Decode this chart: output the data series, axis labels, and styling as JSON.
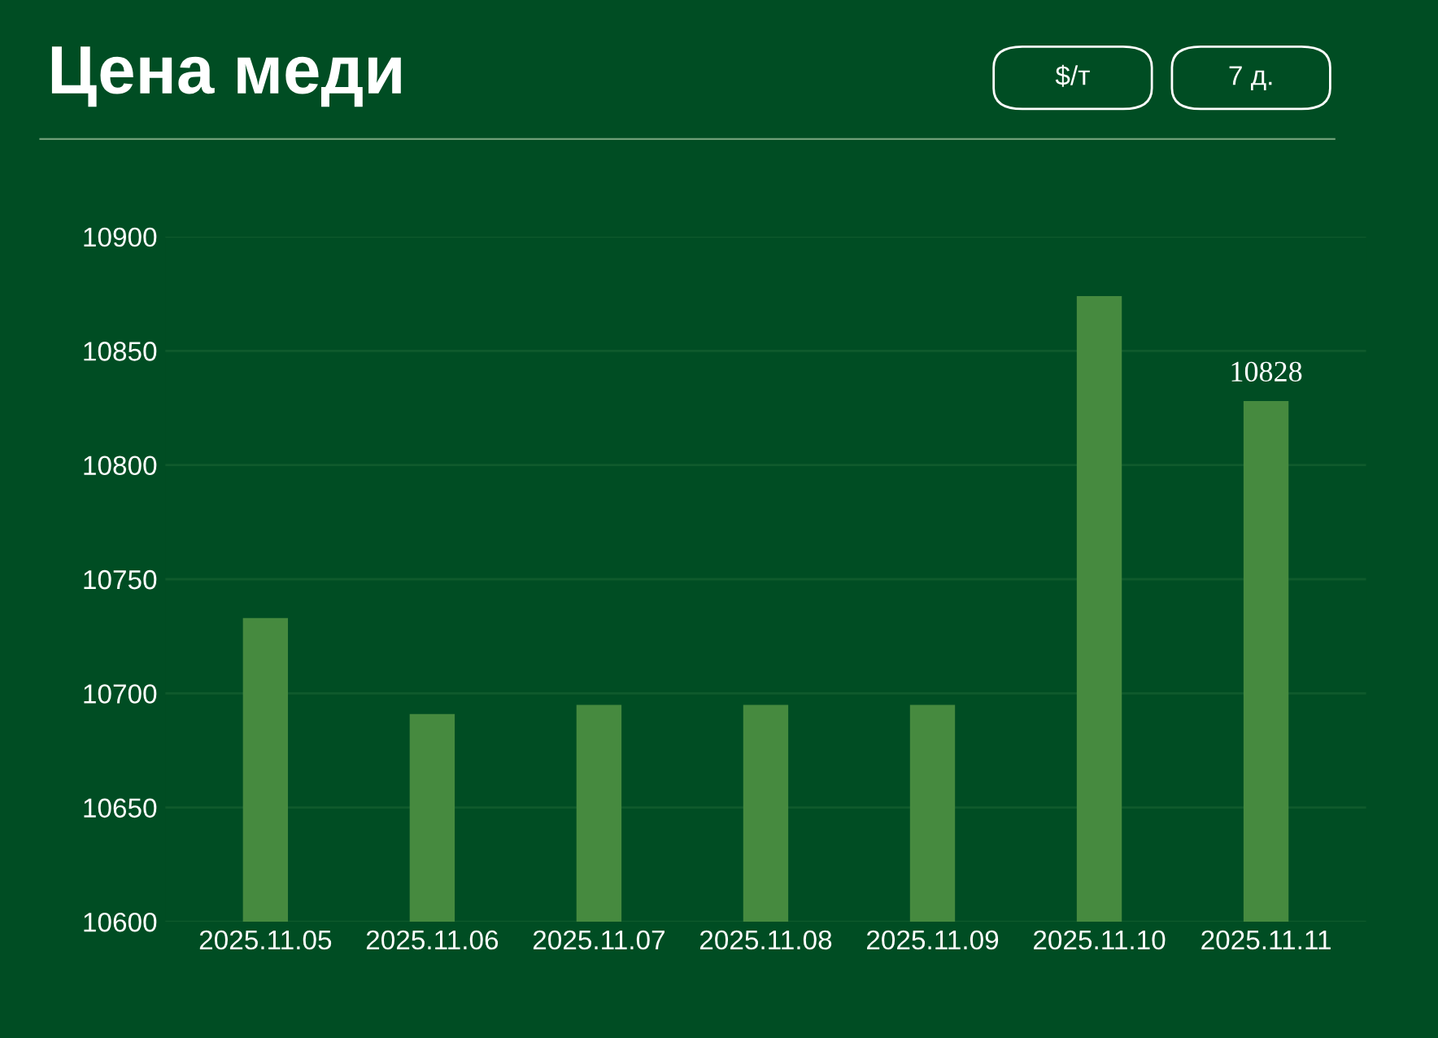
{
  "chart_data": {
    "type": "bar",
    "title": "Цена меди",
    "annotations": [
      "$/т",
      "7 д."
    ],
    "categories": [
      "2025.11.05",
      "2025.11.06",
      "2025.11.07",
      "2025.11.08",
      "2025.11.09",
      "2025.11.10",
      "2025.11.11"
    ],
    "values": [
      10733,
      10691,
      10695,
      10695,
      10695,
      10874,
      10828
    ],
    "value_labels": [
      null,
      null,
      null,
      null,
      null,
      null,
      "10828"
    ],
    "color": "#468a3f",
    "ylim": [
      10600,
      10900
    ],
    "yticks": [
      10600,
      10650,
      10700,
      10750,
      10800,
      10850,
      10900
    ],
    "grid": "y"
  }
}
